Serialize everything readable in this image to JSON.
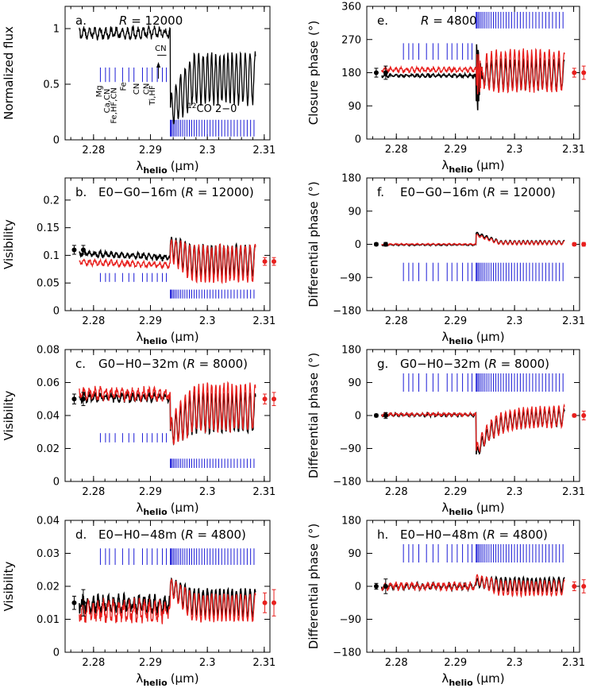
{
  "figure": {
    "xlabel_main": "λ",
    "xlabel_sub": "helio",
    "xlabel_unit": "(μm)"
  },
  "chart_data": [
    {
      "id": "a",
      "type": "line",
      "panel_label": "a.",
      "title_prefix": "R",
      "title_value": "= 12000",
      "ylabel": "Normalized flux",
      "xlim": [
        2.275,
        2.311
      ],
      "ylim": [
        0,
        1.2
      ],
      "xticks": [
        2.28,
        2.29,
        2.3,
        2.31
      ],
      "xtick_labels": [
        "2.28",
        "2.29",
        "2.3",
        "2.31"
      ],
      "yticks": [
        0,
        0.5,
        1
      ],
      "ytick_labels": [
        "0",
        "0.5",
        "1"
      ],
      "series": [
        {
          "color": "#000000",
          "values": {
            "pre": 0.96,
            "amp": 0.04,
            "period": 0.00095,
            "post_start": 0.26,
            "post_base": 0.55,
            "post_amp": 0.22,
            "dip": 0.22,
            "edge": 2.2935,
            "end": 2.3085,
            "start": 2.2775
          }
        }
      ],
      "co_ticks": {
        "top": 0.18,
        "bottom": 0.03
      },
      "atomic_ticks": {
        "top": 0.65,
        "bottom": 0.52
      },
      "annotations": {
        "co": "CO 2−0",
        "co_sup": "12",
        "lines": [
          "Mg",
          "Ca,CN",
          "Fe,HF,CN",
          "Fe",
          "CN",
          "CN",
          "Ti,HF",
          "CN"
        ]
      },
      "error_points": []
    },
    {
      "id": "b",
      "type": "line",
      "panel_label": "b.",
      "title": "E0−G0−16m",
      "title_prefix": "R",
      "title_value": "= 12000",
      "ylabel": "Visibility",
      "xlim": [
        2.275,
        2.311
      ],
      "ylim": [
        0,
        0.24
      ],
      "xticks": [
        2.28,
        2.29,
        2.3,
        2.31
      ],
      "xtick_labels": [
        "2.28",
        "2.29",
        "2.3",
        "2.31"
      ],
      "yticks": [
        0,
        0.05,
        0.1,
        0.15,
        0.2
      ],
      "ytick_labels": [
        "0",
        "0.05",
        "0.1",
        "0.15",
        "0.2"
      ],
      "series": [
        {
          "color": "#000000",
          "values": {
            "pre": 0.104,
            "pre_slope": -0.008,
            "amp": 0.004,
            "period": 0.00095,
            "post_start": 0.115,
            "post_base": 0.09,
            "post_amp": 0.028,
            "dip": 0.0,
            "edge": 2.2935,
            "end": 2.3085,
            "start": 2.2775
          }
        },
        {
          "color": "#e8201e",
          "values": {
            "pre": 0.088,
            "pre_slope": -0.006,
            "amp": 0.004,
            "period": 0.00095,
            "post_start": 0.11,
            "post_base": 0.085,
            "post_amp": 0.032,
            "dip": 0.0,
            "edge": 2.2935,
            "end": 2.3085,
            "start": 2.2775
          }
        }
      ],
      "co_ticks": {
        "top": 0.038,
        "bottom": 0.022
      },
      "atomic_ticks": {
        "top": 0.068,
        "bottom": 0.052
      },
      "error_points": [
        {
          "x": 2.2766,
          "y": 0.11,
          "err": 0.008,
          "color": "#000000"
        },
        {
          "x": 2.2782,
          "y": 0.11,
          "err": 0.008,
          "color": "#000000"
        },
        {
          "x": 2.3101,
          "y": 0.089,
          "err": 0.007,
          "color": "#e8201e"
        },
        {
          "x": 2.3117,
          "y": 0.089,
          "err": 0.007,
          "color": "#e8201e"
        }
      ]
    },
    {
      "id": "c",
      "type": "line",
      "panel_label": "c.",
      "title": "G0−H0−32m",
      "title_prefix": "R",
      "title_value": "= 8000",
      "ylabel": "Visibility",
      "xlim": [
        2.275,
        2.311
      ],
      "ylim": [
        0,
        0.08
      ],
      "xticks": [
        2.28,
        2.29,
        2.3,
        2.31
      ],
      "xtick_labels": [
        "2.28",
        "2.29",
        "2.3",
        "2.31"
      ],
      "yticks": [
        0,
        0.02,
        0.04,
        0.06,
        0.08
      ],
      "ytick_labels": [
        "0",
        "0.02",
        "0.04",
        "0.06",
        "0.08"
      ],
      "series": [
        {
          "color": "#000000",
          "values": {
            "pre": 0.051,
            "pre_slope": 0.0,
            "amp": 0.002,
            "period": 0.00095,
            "post_start": 0.03,
            "post_base": 0.042,
            "post_amp": 0.012,
            "dip": 0.02,
            "edge": 2.2935,
            "end": 2.3085,
            "start": 2.2775
          }
        },
        {
          "color": "#e8201e",
          "values": {
            "pre": 0.053,
            "pre_slope": 0.0,
            "amp": 0.003,
            "period": 0.00095,
            "post_start": 0.03,
            "post_base": 0.045,
            "post_amp": 0.014,
            "dip": 0.022,
            "edge": 2.2935,
            "end": 2.3085,
            "start": 2.2775
          }
        }
      ],
      "co_ticks": {
        "top": 0.0138,
        "bottom": 0.0082
      },
      "atomic_ticks": {
        "top": 0.0293,
        "bottom": 0.0237
      },
      "error_points": [
        {
          "x": 2.2766,
          "y": 0.05,
          "err": 0.003,
          "color": "#000000"
        },
        {
          "x": 2.2782,
          "y": 0.05,
          "err": 0.004,
          "color": "#000000"
        },
        {
          "x": 2.3101,
          "y": 0.05,
          "err": 0.003,
          "color": "#e8201e"
        },
        {
          "x": 2.3117,
          "y": 0.05,
          "err": 0.004,
          "color": "#e8201e"
        }
      ]
    },
    {
      "id": "d",
      "type": "line",
      "panel_label": "d.",
      "title": "E0−H0−48m",
      "title_prefix": "R",
      "title_value": "= 4800",
      "ylabel": "Visibility",
      "xlim": [
        2.275,
        2.311
      ],
      "ylim": [
        0,
        0.04
      ],
      "xticks": [
        2.28,
        2.29,
        2.3,
        2.31
      ],
      "xtick_labels": [
        "2.28",
        "2.29",
        "2.3",
        "2.31"
      ],
      "yticks": [
        0,
        0.01,
        0.02,
        0.03,
        0.04
      ],
      "ytick_labels": [
        "0",
        "0.01",
        "0.02",
        "0.03",
        "0.04"
      ],
      "series": [
        {
          "color": "#000000",
          "values": {
            "pre": 0.0145,
            "pre_slope": 0.0,
            "amp": 0.002,
            "period": 0.0009,
            "post_start": 0.02,
            "post_base": 0.015,
            "post_amp": 0.004,
            "dip": 0.0,
            "edge": 2.2935,
            "end": 2.3085,
            "start": 2.2775
          }
        },
        {
          "color": "#e8201e",
          "values": {
            "pre": 0.0125,
            "pre_slope": 0.0,
            "amp": 0.0025,
            "period": 0.0009,
            "post_start": 0.02,
            "post_base": 0.0135,
            "post_amp": 0.004,
            "dip": 0.0,
            "edge": 2.2935,
            "end": 2.3085,
            "start": 2.2775
          }
        }
      ],
      "co_ticks": {
        "top": 0.0315,
        "bottom": 0.0265
      },
      "atomic_ticks": {
        "top": 0.0315,
        "bottom": 0.0265
      },
      "error_points": [
        {
          "x": 2.2766,
          "y": 0.015,
          "err": 0.002,
          "color": "#000000"
        },
        {
          "x": 2.2782,
          "y": 0.015,
          "err": 0.004,
          "color": "#000000"
        },
        {
          "x": 2.3101,
          "y": 0.015,
          "err": 0.003,
          "color": "#e8201e"
        },
        {
          "x": 2.3117,
          "y": 0.015,
          "err": 0.004,
          "color": "#e8201e"
        }
      ]
    },
    {
      "id": "e",
      "type": "line",
      "panel_label": "e.",
      "title_prefix": "R",
      "title_value": "= 4800",
      "ylabel": "Closure phase",
      "ylabel_unit": "(°)",
      "xlim": [
        2.275,
        2.311
      ],
      "ylim": [
        0,
        360
      ],
      "xticks": [
        2.28,
        2.29,
        2.3,
        2.31
      ],
      "xtick_labels": [
        "2.28",
        "2.29",
        "2.3",
        "2.31"
      ],
      "yticks": [
        0,
        90,
        180,
        270,
        360
      ],
      "ytick_labels": [
        "0",
        "90",
        "180",
        "270",
        "360"
      ],
      "series": [
        {
          "color": "#000000",
          "values": {
            "pre": 172,
            "pre_slope": 0,
            "amp": 3,
            "period": 0.0009,
            "post_start": 175,
            "post_base": 175,
            "post_amp": 40,
            "dip": 0,
            "edge": 2.2935,
            "end": 2.3085,
            "start": 2.2775,
            "spike": true
          }
        },
        {
          "color": "#e8201e",
          "values": {
            "pre": 188,
            "pre_slope": 0,
            "amp": 5,
            "period": 0.0009,
            "post_start": 180,
            "post_base": 185,
            "post_amp": 55,
            "dip": 0,
            "edge": 2.2935,
            "end": 2.3085,
            "start": 2.2775,
            "spike": true
          }
        }
      ],
      "co_ticks": {
        "top": 345,
        "bottom": 300
      },
      "atomic_ticks": {
        "top": 260,
        "bottom": 215
      },
      "error_points": [
        {
          "x": 2.2766,
          "y": 180,
          "err": 12,
          "color": "#000000"
        },
        {
          "x": 2.2782,
          "y": 180,
          "err": 18,
          "color": "#000000"
        },
        {
          "x": 2.3101,
          "y": 180,
          "err": 12,
          "color": "#e8201e"
        },
        {
          "x": 2.3117,
          "y": 180,
          "err": 18,
          "color": "#e8201e"
        }
      ]
    },
    {
      "id": "f",
      "type": "line",
      "panel_label": "f.",
      "title": "E0−G0−16m",
      "title_prefix": "R",
      "title_value": "= 12000",
      "ylabel": "Differential phase",
      "ylabel_unit": "(°)",
      "xlim": [
        2.275,
        2.311
      ],
      "ylim": [
        -180,
        180
      ],
      "xticks": [
        2.28,
        2.29,
        2.3,
        2.31
      ],
      "xtick_labels": [
        "2.28",
        "2.29",
        "2.3",
        "2.31"
      ],
      "yticks": [
        -180,
        -90,
        0,
        90,
        180
      ],
      "ytick_labels": [
        "−180",
        "−90",
        "0",
        "90",
        "180"
      ],
      "series": [
        {
          "color": "#000000",
          "values": {
            "pre": -1,
            "pre_slope": 0,
            "amp": 1.5,
            "period": 0.0009,
            "post_start": 30,
            "post_base": 5,
            "post_amp": 5,
            "dip": 0,
            "edge": 2.2935,
            "end": 2.3085,
            "start": 2.2775
          }
        },
        {
          "color": "#e8201e",
          "values": {
            "pre": 0,
            "pre_slope": 0,
            "amp": 1.5,
            "period": 0.0009,
            "post_start": 25,
            "post_base": 4,
            "post_amp": 5,
            "dip": 0,
            "edge": 2.2935,
            "end": 2.3085,
            "start": 2.2775
          }
        }
      ],
      "co_ticks": {
        "top": -50,
        "bottom": -100
      },
      "atomic_ticks": {
        "top": -50,
        "bottom": -100
      },
      "error_points": [
        {
          "x": 2.2766,
          "y": 0,
          "err": 4,
          "color": "#000000"
        },
        {
          "x": 2.2782,
          "y": 0,
          "err": 5,
          "color": "#000000"
        },
        {
          "x": 2.3101,
          "y": 0,
          "err": 4,
          "color": "#e8201e"
        },
        {
          "x": 2.3117,
          "y": 0,
          "err": 5,
          "color": "#e8201e"
        }
      ]
    },
    {
      "id": "g",
      "type": "line",
      "panel_label": "g.",
      "title": "G0−H0−32m",
      "title_prefix": "R",
      "title_value": "= 8000",
      "ylabel": "Differential phase",
      "ylabel_unit": "(°)",
      "xlim": [
        2.275,
        2.311
      ],
      "ylim": [
        -180,
        180
      ],
      "xticks": [
        2.28,
        2.29,
        2.3,
        2.31
      ],
      "xtick_labels": [
        "2.28",
        "2.29",
        "2.3",
        "2.31"
      ],
      "yticks": [
        -180,
        -90,
        0,
        90,
        180
      ],
      "ytick_labels": [
        "−180",
        "−90",
        "0",
        "90",
        "180"
      ],
      "series": [
        {
          "color": "#000000",
          "values": {
            "pre": 2,
            "pre_slope": 0,
            "amp": 3,
            "period": 0.0009,
            "post_start": -110,
            "post_base": -5,
            "post_amp": 22,
            "dip": -110,
            "edge": 2.2935,
            "end": 2.3085,
            "start": 2.2775,
            "recover": true
          }
        },
        {
          "color": "#e8201e",
          "values": {
            "pre": 3,
            "pre_slope": 0,
            "amp": 3,
            "period": 0.0009,
            "post_start": -100,
            "post_base": -3,
            "post_amp": 28,
            "dip": -100,
            "edge": 2.2935,
            "end": 2.3085,
            "start": 2.2775,
            "recover": true
          }
        }
      ],
      "co_ticks": {
        "top": 115,
        "bottom": 65
      },
      "atomic_ticks": {
        "top": 115,
        "bottom": 65
      },
      "error_points": [
        {
          "x": 2.2766,
          "y": 0,
          "err": 4,
          "color": "#000000"
        },
        {
          "x": 2.2782,
          "y": 0,
          "err": 8,
          "color": "#000000"
        },
        {
          "x": 2.3101,
          "y": 0,
          "err": 4,
          "color": "#e8201e"
        },
        {
          "x": 2.3117,
          "y": 0,
          "err": 12,
          "color": "#e8201e"
        }
      ]
    },
    {
      "id": "h",
      "type": "line",
      "panel_label": "h.",
      "title": "E0−H0−48m",
      "title_prefix": "R",
      "title_value": "= 4800",
      "ylabel": "Differential phase",
      "ylabel_unit": "(°)",
      "xlim": [
        2.275,
        2.311
      ],
      "ylim": [
        -180,
        180
      ],
      "xticks": [
        2.28,
        2.29,
        2.3,
        2.31
      ],
      "xtick_labels": [
        "2.28",
        "2.29",
        "2.3",
        "2.31"
      ],
      "yticks": [
        -180,
        -90,
        0,
        90,
        180
      ],
      "ytick_labels": [
        "−180",
        "−90",
        "0",
        "90",
        "180"
      ],
      "series": [
        {
          "color": "#000000",
          "values": {
            "pre": 0,
            "pre_slope": 0,
            "amp": 6,
            "period": 0.0009,
            "post_start": 10,
            "post_base": 5,
            "post_amp": 18,
            "dip": 0,
            "edge": 2.2935,
            "end": 2.3085,
            "start": 2.2775
          }
        },
        {
          "color": "#e8201e",
          "values": {
            "pre": 0,
            "pre_slope": 0,
            "amp": 8,
            "period": 0.0009,
            "post_start": 20,
            "post_base": -5,
            "post_amp": 20,
            "dip": 0,
            "edge": 2.2935,
            "end": 2.3085,
            "start": 2.2775
          }
        }
      ],
      "co_ticks": {
        "top": 115,
        "bottom": 65
      },
      "atomic_ticks": {
        "top": 115,
        "bottom": 65
      },
      "error_points": [
        {
          "x": 2.2766,
          "y": 0,
          "err": 8,
          "color": "#000000"
        },
        {
          "x": 2.2782,
          "y": 0,
          "err": 20,
          "color": "#000000"
        },
        {
          "x": 2.3101,
          "y": 0,
          "err": 12,
          "color": "#e8201e"
        },
        {
          "x": 2.3117,
          "y": 0,
          "err": 18,
          "color": "#e8201e"
        }
      ]
    }
  ],
  "line_positions": {
    "atomic": [
      2.2812,
      2.2821,
      2.2828,
      2.2838,
      2.2851,
      2.2862,
      2.2871,
      2.2886,
      2.2894,
      2.2903,
      2.2912,
      2.2921,
      2.2928
    ],
    "co_start": 2.2935,
    "co_end": 2.3082,
    "co_count": 34
  },
  "colors": {
    "black": "#000000",
    "red": "#e8201e",
    "blue": "#1b1bd6"
  }
}
